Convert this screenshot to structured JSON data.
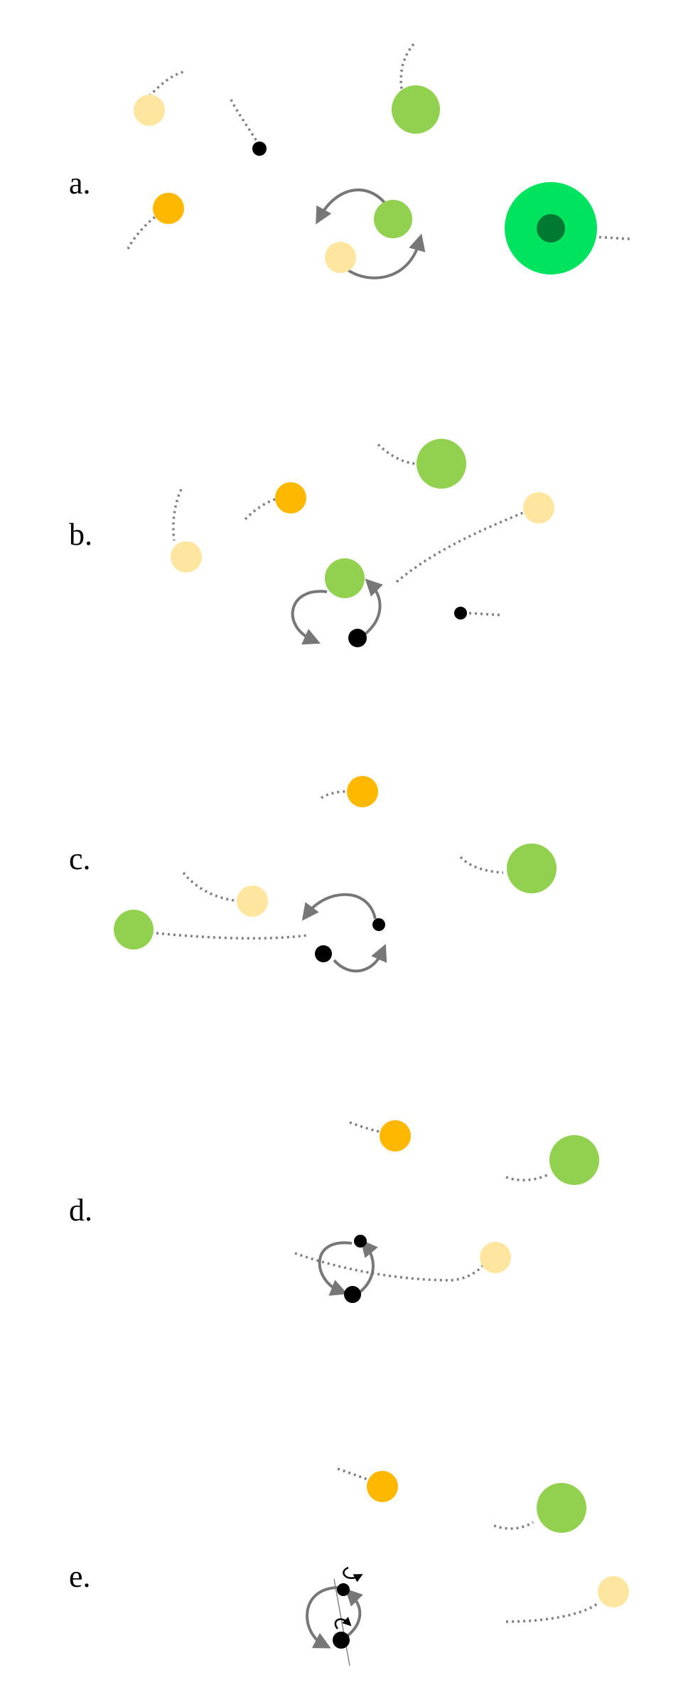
{
  "panels": [
    {
      "label": "a."
    },
    {
      "label": "b."
    },
    {
      "label": "c."
    },
    {
      "label": "d."
    },
    {
      "label": "e."
    }
  ],
  "colors": {
    "trail": "#808080",
    "arrow": "#777777",
    "pale_yellow_particle": "#FFE6A0",
    "orange_particle": "#FFB800",
    "green_particle": "#92D050",
    "black_particle": "#000000",
    "bright_green_outer": "#00E35E",
    "dark_green_core": "#007A33",
    "spin_arrow": "#000000",
    "spin_axis": "#888888"
  }
}
